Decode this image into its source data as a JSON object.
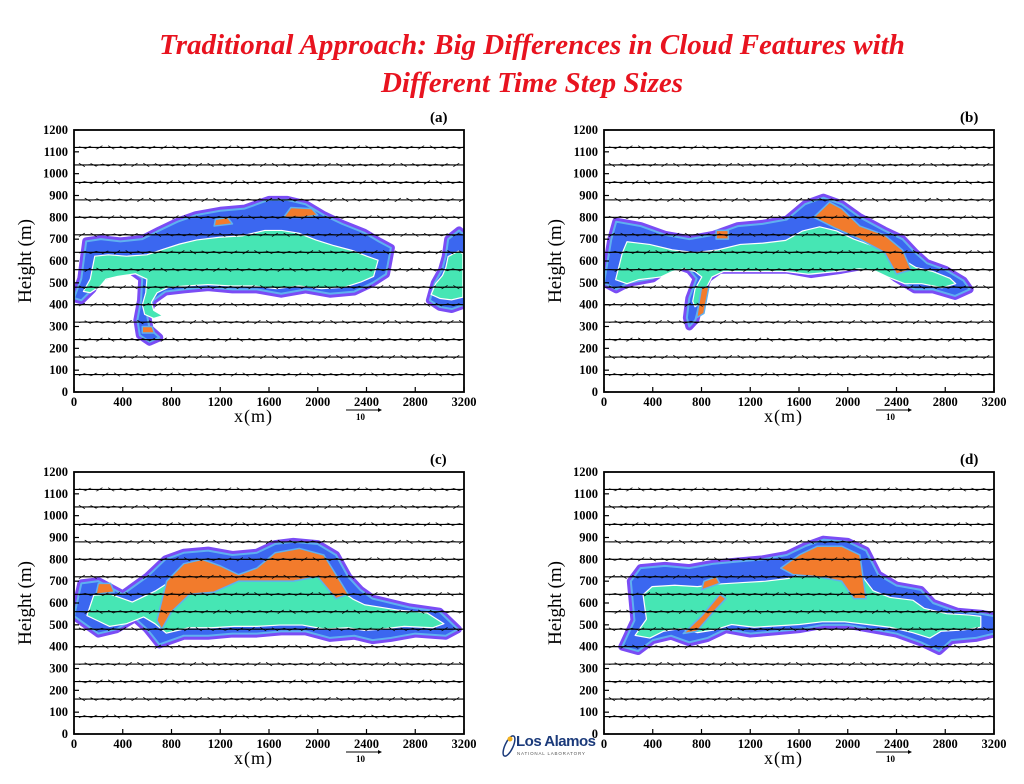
{
  "title": {
    "line1": "Traditional Approach: Big Differences in Cloud Features with",
    "line2": "Different Time Step Sizes"
  },
  "colors": {
    "title": "#e8131f",
    "outer_cloud": "#7a4cf5",
    "mid_cloud": "#3b67f0",
    "inner_cloud": "#46e6b4",
    "core_cloud": "#f27b2c",
    "edge": "#5fb0f0"
  },
  "axes": {
    "ylabel": "Height (m)",
    "xlabel": "x(m)",
    "xticks": [
      "0",
      "400",
      "800",
      "1200",
      "1600",
      "2000",
      "2400",
      "2800",
      "3200"
    ],
    "yticks": [
      "0",
      "100",
      "200",
      "300",
      "400",
      "500",
      "600",
      "700",
      "800",
      "900",
      "1000",
      "1100",
      "1200"
    ],
    "xlim": [
      0,
      3200
    ],
    "ylim": [
      0,
      1200
    ],
    "reference_vector": "10"
  },
  "logo": {
    "name": "Los Alamos",
    "sub": "NATIONAL LABORATORY"
  },
  "chart_data": [
    {
      "panel_label": "(a)",
      "type": "heatmap",
      "description_type": "cloud contour with wind vectors",
      "xlabel": "x(m)",
      "ylabel": "Height (m)",
      "xlim": [
        0,
        3200
      ],
      "ylim": [
        0,
        1200
      ],
      "cloud_outline": [
        [
          0,
          430
        ],
        [
          60,
          520
        ],
        [
          100,
          690
        ],
        [
          220,
          700
        ],
        [
          380,
          690
        ],
        [
          560,
          700
        ],
        [
          700,
          740
        ],
        [
          850,
          780
        ],
        [
          1000,
          810
        ],
        [
          1200,
          830
        ],
        [
          1400,
          840
        ],
        [
          1600,
          880
        ],
        [
          1750,
          880
        ],
        [
          1900,
          860
        ],
        [
          2050,
          810
        ],
        [
          2200,
          770
        ],
        [
          2380,
          730
        ],
        [
          2500,
          690
        ],
        [
          2600,
          660
        ],
        [
          2560,
          540
        ],
        [
          2450,
          500
        ],
        [
          2300,
          460
        ],
        [
          2100,
          450
        ],
        [
          1900,
          470
        ],
        [
          1700,
          450
        ],
        [
          1500,
          470
        ],
        [
          1300,
          470
        ],
        [
          1100,
          480
        ],
        [
          900,
          470
        ],
        [
          750,
          460
        ],
        [
          650,
          420
        ],
        [
          600,
          350
        ],
        [
          620,
          290
        ],
        [
          700,
          250
        ],
        [
          620,
          230
        ],
        [
          540,
          260
        ],
        [
          520,
          330
        ],
        [
          550,
          420
        ],
        [
          560,
          520
        ],
        [
          460,
          560
        ],
        [
          300,
          540
        ],
        [
          200,
          520
        ],
        [
          150,
          470
        ],
        [
          60,
          420
        ]
      ],
      "cloud_outline_2": [
        [
          2920,
          420
        ],
        [
          3000,
          390
        ],
        [
          3100,
          380
        ],
        [
          3200,
          400
        ],
        [
          3200,
          720
        ],
        [
          3160,
          740
        ],
        [
          3070,
          700
        ],
        [
          3050,
          620
        ],
        [
          3020,
          560
        ],
        [
          2960,
          500
        ]
      ],
      "core_regions": [
        [
          [
            1720,
            800
          ],
          [
            1870,
            800
          ],
          [
            2000,
            810
          ],
          [
            1950,
            840
          ],
          [
            1780,
            845
          ]
        ],
        [
          [
            1150,
            760
          ],
          [
            1300,
            770
          ],
          [
            1260,
            800
          ],
          [
            1160,
            790
          ]
        ],
        [
          [
            560,
            270
          ],
          [
            660,
            270
          ],
          [
            640,
            300
          ],
          [
            560,
            300
          ]
        ]
      ]
    },
    {
      "panel_label": "(b)",
      "type": "heatmap",
      "description_type": "cloud contour with wind vectors",
      "xlabel": "x(m)",
      "ylabel": "Height (m)",
      "xlim": [
        0,
        3200
      ],
      "ylim": [
        0,
        1200
      ],
      "cloud_outline": [
        [
          0,
          500
        ],
        [
          60,
          700
        ],
        [
          100,
          780
        ],
        [
          300,
          760
        ],
        [
          500,
          720
        ],
        [
          700,
          700
        ],
        [
          900,
          720
        ],
        [
          1100,
          760
        ],
        [
          1300,
          770
        ],
        [
          1500,
          790
        ],
        [
          1650,
          860
        ],
        [
          1800,
          890
        ],
        [
          1950,
          860
        ],
        [
          2100,
          800
        ],
        [
          2300,
          740
        ],
        [
          2450,
          700
        ],
        [
          2550,
          640
        ],
        [
          2650,
          590
        ],
        [
          2800,
          560
        ],
        [
          2950,
          510
        ],
        [
          3000,
          470
        ],
        [
          2880,
          440
        ],
        [
          2700,
          470
        ],
        [
          2550,
          470
        ],
        [
          2400,
          520
        ],
        [
          2300,
          560
        ],
        [
          2150,
          580
        ],
        [
          1950,
          560
        ],
        [
          1700,
          540
        ],
        [
          1500,
          560
        ],
        [
          1300,
          560
        ],
        [
          1100,
          560
        ],
        [
          950,
          560
        ],
        [
          850,
          520
        ],
        [
          800,
          440
        ],
        [
          750,
          330
        ],
        [
          700,
          300
        ],
        [
          680,
          340
        ],
        [
          700,
          430
        ],
        [
          760,
          520
        ],
        [
          700,
          560
        ],
        [
          600,
          580
        ],
        [
          500,
          560
        ],
        [
          400,
          520
        ],
        [
          300,
          510
        ],
        [
          200,
          500
        ],
        [
          100,
          470
        ]
      ],
      "core_regions": [
        [
          [
            1720,
            800
          ],
          [
            1850,
            870
          ],
          [
            1950,
            840
          ],
          [
            2100,
            760
          ],
          [
            2300,
            720
          ],
          [
            2450,
            650
          ],
          [
            2520,
            560
          ],
          [
            2400,
            540
          ],
          [
            2300,
            640
          ],
          [
            2100,
            700
          ],
          [
            1900,
            750
          ]
        ],
        [
          [
            760,
            340
          ],
          [
            820,
            360
          ],
          [
            860,
            480
          ],
          [
            800,
            480
          ]
        ],
        [
          [
            920,
            700
          ],
          [
            1020,
            700
          ],
          [
            1020,
            740
          ],
          [
            920,
            740
          ]
        ]
      ]
    },
    {
      "panel_label": "(c)",
      "type": "heatmap",
      "description_type": "cloud contour with wind vectors",
      "xlabel": "x(m)",
      "ylabel": "Height (m)",
      "xlim": [
        0,
        3200
      ],
      "ylim": [
        0,
        1200
      ],
      "cloud_outline": [
        [
          0,
          540
        ],
        [
          60,
          690
        ],
        [
          200,
          700
        ],
        [
          400,
          640
        ],
        [
          600,
          720
        ],
        [
          750,
          800
        ],
        [
          900,
          830
        ],
        [
          1100,
          840
        ],
        [
          1300,
          820
        ],
        [
          1500,
          830
        ],
        [
          1650,
          870
        ],
        [
          1800,
          880
        ],
        [
          2000,
          870
        ],
        [
          2150,
          820
        ],
        [
          2250,
          720
        ],
        [
          2350,
          660
        ],
        [
          2450,
          620
        ],
        [
          2600,
          600
        ],
        [
          2750,
          580
        ],
        [
          3000,
          560
        ],
        [
          3150,
          480
        ],
        [
          3050,
          450
        ],
        [
          2800,
          460
        ],
        [
          2600,
          440
        ],
        [
          2450,
          430
        ],
        [
          2300,
          450
        ],
        [
          2100,
          440
        ],
        [
          1900,
          470
        ],
        [
          1700,
          470
        ],
        [
          1500,
          460
        ],
        [
          1300,
          460
        ],
        [
          1100,
          450
        ],
        [
          900,
          450
        ],
        [
          700,
          410
        ],
        [
          600,
          480
        ],
        [
          500,
          530
        ],
        [
          350,
          480
        ],
        [
          200,
          460
        ],
        [
          100,
          500
        ]
      ],
      "core_regions": [
        [
          [
            680,
            520
          ],
          [
            760,
            700
          ],
          [
            900,
            780
          ],
          [
            1050,
            800
          ],
          [
            1200,
            770
          ],
          [
            1350,
            730
          ],
          [
            1500,
            760
          ],
          [
            1650,
            830
          ],
          [
            1850,
            850
          ],
          [
            2050,
            820
          ],
          [
            2250,
            640
          ],
          [
            2150,
            620
          ],
          [
            2000,
            720
          ],
          [
            1800,
            700
          ],
          [
            1550,
            700
          ],
          [
            1350,
            700
          ],
          [
            1150,
            650
          ],
          [
            950,
            640
          ],
          [
            800,
            560
          ],
          [
            720,
            480
          ]
        ],
        [
          [
            180,
            640
          ],
          [
            330,
            650
          ],
          [
            300,
            690
          ],
          [
            200,
            690
          ]
        ]
      ]
    },
    {
      "panel_label": "(d)",
      "type": "heatmap",
      "description_type": "cloud contour with wind vectors",
      "xlabel": "x(m)",
      "ylabel": "Height (m)",
      "xlim": [
        0,
        3200
      ],
      "ylim": [
        0,
        1200
      ],
      "cloud_outline": [
        [
          150,
          400
        ],
        [
          250,
          520
        ],
        [
          220,
          700
        ],
        [
          300,
          760
        ],
        [
          500,
          770
        ],
        [
          700,
          760
        ],
        [
          900,
          780
        ],
        [
          1100,
          790
        ],
        [
          1300,
          800
        ],
        [
          1500,
          820
        ],
        [
          1650,
          860
        ],
        [
          1800,
          890
        ],
        [
          2000,
          880
        ],
        [
          2150,
          840
        ],
        [
          2250,
          730
        ],
        [
          2400,
          680
        ],
        [
          2600,
          660
        ],
        [
          2700,
          600
        ],
        [
          2900,
          560
        ],
        [
          3100,
          550
        ],
        [
          3200,
          540
        ],
        [
          3200,
          460
        ],
        [
          3050,
          440
        ],
        [
          2850,
          430
        ],
        [
          2750,
          380
        ],
        [
          2600,
          420
        ],
        [
          2400,
          460
        ],
        [
          2200,
          480
        ],
        [
          2000,
          500
        ],
        [
          1800,
          500
        ],
        [
          1600,
          480
        ],
        [
          1400,
          470
        ],
        [
          1200,
          460
        ],
        [
          1000,
          480
        ],
        [
          850,
          440
        ],
        [
          700,
          420
        ],
        [
          550,
          450
        ],
        [
          400,
          430
        ],
        [
          280,
          380
        ]
      ],
      "core_regions": [
        [
          [
            1450,
            760
          ],
          [
            1600,
            820
          ],
          [
            1750,
            860
          ],
          [
            1950,
            860
          ],
          [
            2100,
            820
          ],
          [
            2150,
            620
          ],
          [
            2050,
            620
          ],
          [
            1950,
            700
          ],
          [
            1750,
            720
          ],
          [
            1550,
            730
          ]
        ],
        [
          [
            650,
            460
          ],
          [
            800,
            540
          ],
          [
            950,
            640
          ],
          [
            1000,
            620
          ],
          [
            900,
            560
          ],
          [
            760,
            470
          ]
        ],
        [
          [
            800,
            660
          ],
          [
            950,
            690
          ],
          [
            920,
            720
          ],
          [
            820,
            700
          ]
        ]
      ]
    }
  ]
}
